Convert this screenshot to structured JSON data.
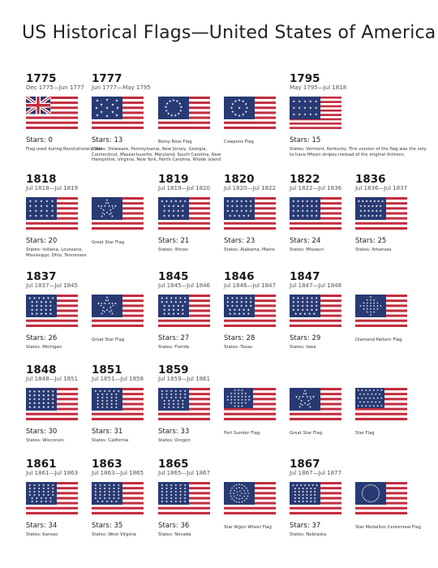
{
  "title": "US Historical Flags—United States of America",
  "colors": {
    "blue": "#283a73",
    "red": "#c32c3e",
    "white": "#ffffff"
  },
  "stars_prefix": "Stars:",
  "flags": [
    {
      "year": "1775",
      "range": "Dec 1775—Jun 1777",
      "stars": "0",
      "note": "Flag used during Revolutionary War",
      "pattern": "union"
    },
    {
      "year": "1777",
      "range": "Jun 1777—May 1795",
      "stars": "13",
      "note": "States: Delaware, Pennsylvania, New Jersey, Georgia, Connecticut, Massachusetts, Maryland, South Carolina, New Hampshire, Virginia, New York, North Carolina, Rhode Island",
      "pattern": "scatter13"
    },
    {
      "year": "",
      "range": "",
      "stars": "",
      "note": "Betsy Ross Flag",
      "pattern": "circle13"
    },
    {
      "year": "",
      "range": "",
      "stars": "",
      "note": "Cowpens Flag",
      "pattern": "circle12"
    },
    {
      "year": "1795",
      "range": "May 1795—Jul 1818",
      "stars": "15",
      "note": "States: Vermont, Kentucky. This version of the flag was the only to have fifteen stripes instead of the original thirteen.",
      "pattern": "grid15"
    },
    {
      "year": "1818",
      "range": "Jul 1818—Jul 1819",
      "stars": "20",
      "note": "States: Indiana, Louisiana, Mississippi, Ohio, Tennessee",
      "pattern": "grid20"
    },
    {
      "year": "",
      "range": "",
      "stars": "",
      "note": "Great Star Flag",
      "pattern": "greatstar"
    },
    {
      "year": "1819",
      "range": "Jul 1819—Jul 1820",
      "stars": "21",
      "note": "States: Illinois",
      "pattern": "grid21"
    },
    {
      "year": "1820",
      "range": "Jul 1820—Jul 1822",
      "stars": "23",
      "note": "States: Alabama, Maine",
      "pattern": "grid23"
    },
    {
      "year": "1822",
      "range": "Jul 1822—Jul 1836",
      "stars": "24",
      "note": "States: Missouri",
      "pattern": "grid24"
    },
    {
      "year": "1836",
      "range": "Jul 1836—Jul 1837",
      "stars": "25",
      "note": "States: Arkansas",
      "pattern": "grid25"
    },
    {
      "year": "1837",
      "range": "Jul 1837—Jul 1845",
      "stars": "26",
      "note": "States: Michigan",
      "pattern": "grid26"
    },
    {
      "year": "",
      "range": "",
      "stars": "",
      "note": "Great Star Flag",
      "pattern": "greatstar"
    },
    {
      "year": "1845",
      "range": "Jul 1845—Jul 1846",
      "stars": "27",
      "note": "States: Florida",
      "pattern": "grid27"
    },
    {
      "year": "1846",
      "range": "Jul 1846—Jul 1847",
      "stars": "28",
      "note": "States: Texas",
      "pattern": "grid28"
    },
    {
      "year": "1847",
      "range": "Jul 1847—Jul 1848",
      "stars": "29",
      "note": "States: Iowa",
      "pattern": "grid29"
    },
    {
      "year": "",
      "range": "",
      "stars": "",
      "note": "Diamond Pattern Flag",
      "pattern": "diamond"
    },
    {
      "year": "1848",
      "range": "Jul 1848—Jul 1851",
      "stars": "30",
      "note": "States: Wisconsin",
      "pattern": "grid30"
    },
    {
      "year": "1851",
      "range": "Jul 1851—Jul 1858",
      "stars": "31",
      "note": "States: California",
      "pattern": "grid31"
    },
    {
      "year": "1859",
      "range": "Jul 1859—Jul 1861",
      "stars": "33",
      "note": "States: Oregon",
      "pattern": "grid33"
    },
    {
      "year": "",
      "range": "",
      "stars": "",
      "note": "Fort Sumter Flag",
      "pattern": "fortsumter"
    },
    {
      "year": "",
      "range": "",
      "stars": "",
      "note": "Great Star Flag",
      "pattern": "greatstar"
    },
    {
      "year": "",
      "range": "",
      "stars": "",
      "note": "Star Flag",
      "pattern": "starflag"
    },
    {
      "year": "1861",
      "range": "Jul 1861—Jul 1863",
      "stars": "34",
      "note": "States: Kansas",
      "pattern": "grid34"
    },
    {
      "year": "1863",
      "range": "Jul 1863—Jul 1865",
      "stars": "35",
      "note": "States: West Virginia",
      "pattern": "grid35"
    },
    {
      "year": "1865",
      "range": "Jul 1865—Jul 1867",
      "stars": "36",
      "note": "States: Nevada",
      "pattern": "grid36"
    },
    {
      "year": "",
      "range": "",
      "stars": "",
      "note": "Star Wgon Wheel Flag",
      "pattern": "wagonwheel"
    },
    {
      "year": "1867",
      "range": "Jul 1867—Jul 1877",
      "stars": "37",
      "note": "States: Nebraska",
      "pattern": "grid37"
    },
    {
      "year": "",
      "range": "",
      "stars": "",
      "note": "Star Medallion Centennial Flag",
      "pattern": "medallion"
    }
  ]
}
